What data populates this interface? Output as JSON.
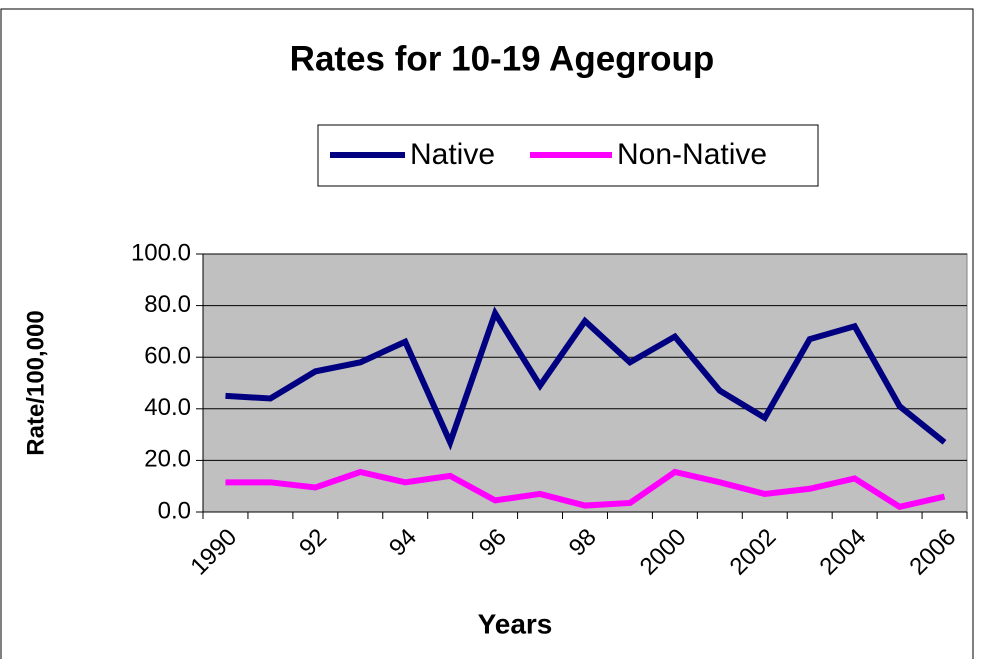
{
  "chart_data": {
    "type": "line",
    "title": "Rates for 10-19 Agegroup",
    "x_label": "Years",
    "y_label": "Rate/100,000",
    "categories": [
      "1990",
      null,
      "92",
      null,
      "94",
      null,
      "96",
      null,
      "98",
      null,
      "2000",
      null,
      "2002",
      null,
      "2004",
      null,
      "2006"
    ],
    "series": [
      {
        "name": "Native",
        "color": "#000080",
        "values": [
          45,
          44,
          54.5,
          58,
          66,
          27,
          77,
          49,
          74,
          58,
          68,
          47,
          36.5,
          67,
          72,
          41,
          27
        ]
      },
      {
        "name": "Non-Native",
        "color": "#ff00ff",
        "values": [
          11.5,
          11.5,
          9.5,
          15.5,
          11.5,
          14,
          4.5,
          7,
          2.5,
          3.5,
          15.5,
          11.5,
          7,
          9,
          13,
          2,
          6
        ]
      }
    ],
    "ylim": [
      0,
      100
    ],
    "yticks": [
      {
        "value": 0,
        "label": "0.0"
      },
      {
        "value": 20,
        "label": "20.0"
      },
      {
        "value": 40,
        "label": "40.0"
      },
      {
        "value": 60,
        "label": "60.0"
      },
      {
        "value": 80,
        "label": "80.0"
      },
      {
        "value": 100,
        "label": "100.0"
      }
    ],
    "grid": true,
    "legend": "top"
  }
}
